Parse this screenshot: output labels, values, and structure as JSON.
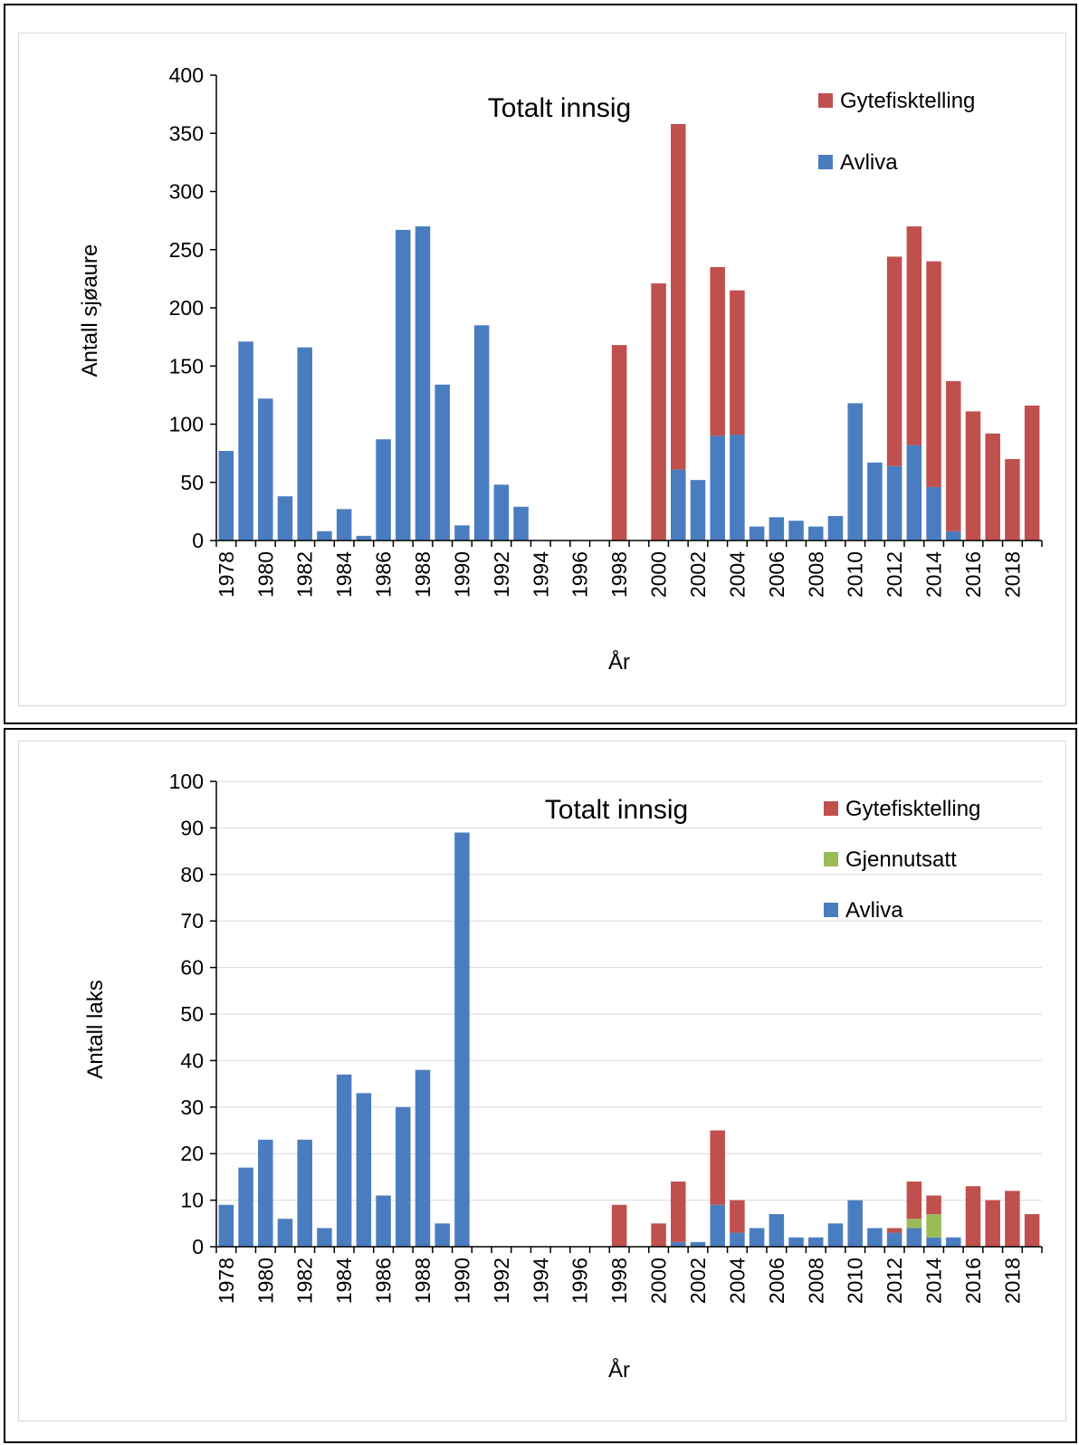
{
  "chart_data": [
    {
      "type": "bar",
      "stacked": true,
      "title": "Totalt innsig",
      "xlabel": "År",
      "ylabel": "Antall sjøaure",
      "ylim": [
        0,
        400
      ],
      "yticks": [
        "0",
        "50",
        "100",
        "150",
        "200",
        "250",
        "300",
        "350",
        "400"
      ],
      "grid": false,
      "legend_position": "top-right",
      "categories": [
        "1978",
        "1979",
        "1980",
        "1981",
        "1982",
        "1983",
        "1984",
        "1985",
        "1986",
        "1987",
        "1988",
        "1989",
        "1990",
        "1991",
        "1992",
        "1993",
        "1994",
        "1995",
        "1996",
        "1997",
        "1998",
        "1999",
        "2000",
        "2001",
        "2002",
        "2003",
        "2004",
        "2005",
        "2006",
        "2007",
        "2008",
        "2009",
        "2010",
        "2011",
        "2012",
        "2013",
        "2014",
        "2015",
        "2016",
        "2017",
        "2018",
        "2019"
      ],
      "xtick_labels": [
        "1978",
        "1980",
        "1982",
        "1984",
        "1986",
        "1988",
        "1990",
        "1992",
        "1994",
        "1996",
        "1998",
        "2000",
        "2002",
        "2004",
        "2006",
        "2008",
        "2010",
        "2012",
        "2014",
        "2016",
        "2018"
      ],
      "series": [
        {
          "name": "Avliva",
          "color": "#4a7dc0",
          "values": [
            77,
            171,
            122,
            38,
            166,
            8,
            27,
            4,
            87,
            267,
            270,
            134,
            13,
            185,
            48,
            29,
            0,
            0,
            0,
            0,
            0,
            0,
            0,
            61,
            52,
            90,
            91,
            12,
            20,
            17,
            12,
            21,
            118,
            67,
            64,
            82,
            46,
            8,
            0,
            0,
            0,
            0
          ]
        },
        {
          "name": "Gytefisktelling",
          "color": "#c0504d",
          "values": [
            0,
            0,
            0,
            0,
            0,
            0,
            0,
            0,
            0,
            0,
            0,
            0,
            0,
            0,
            0,
            0,
            0,
            0,
            0,
            0,
            168,
            0,
            221,
            297,
            0,
            145,
            124,
            0,
            0,
            0,
            0,
            0,
            0,
            0,
            180,
            188,
            194,
            129,
            111,
            92,
            70,
            116
          ]
        }
      ],
      "legend": [
        "Gytefisktelling",
        "Avliva"
      ]
    },
    {
      "type": "bar",
      "stacked": true,
      "title": "Totalt innsig",
      "xlabel": "År",
      "ylabel": "Antall laks",
      "ylim": [
        0,
        100
      ],
      "yticks": [
        "0",
        "10",
        "20",
        "30",
        "40",
        "50",
        "60",
        "70",
        "80",
        "90",
        "100"
      ],
      "grid": true,
      "legend_position": "top-right",
      "categories": [
        "1978",
        "1979",
        "1980",
        "1981",
        "1982",
        "1983",
        "1984",
        "1985",
        "1986",
        "1987",
        "1988",
        "1989",
        "1990",
        "1991",
        "1992",
        "1993",
        "1994",
        "1995",
        "1996",
        "1997",
        "1998",
        "1999",
        "2000",
        "2001",
        "2002",
        "2003",
        "2004",
        "2005",
        "2006",
        "2007",
        "2008",
        "2009",
        "2010",
        "2011",
        "2012",
        "2013",
        "2014",
        "2015",
        "2016",
        "2017",
        "2018",
        "2019"
      ],
      "xtick_labels": [
        "1978",
        "1980",
        "1982",
        "1984",
        "1986",
        "1988",
        "1990",
        "1992",
        "1994",
        "1996",
        "1998",
        "2000",
        "2002",
        "2004",
        "2006",
        "2008",
        "2010",
        "2012",
        "2014",
        "2016",
        "2018"
      ],
      "series": [
        {
          "name": "Avliva",
          "color": "#4a7dc0",
          "values": [
            9,
            17,
            23,
            6,
            23,
            4,
            37,
            33,
            11,
            30,
            38,
            5,
            89,
            0,
            0,
            0,
            0,
            0,
            0,
            0,
            0,
            0,
            0,
            1,
            1,
            9,
            3,
            4,
            7,
            2,
            2,
            5,
            10,
            4,
            3,
            4,
            2,
            2,
            0,
            0,
            0,
            0
          ]
        },
        {
          "name": "Gjennutsatt",
          "color": "#9bbb59",
          "values": [
            0,
            0,
            0,
            0,
            0,
            0,
            0,
            0,
            0,
            0,
            0,
            0,
            0,
            0,
            0,
            0,
            0,
            0,
            0,
            0,
            0,
            0,
            0,
            0,
            0,
            0,
            0,
            0,
            0,
            0,
            0,
            0,
            0,
            0,
            0,
            2,
            5,
            0,
            0,
            0,
            0,
            0
          ]
        },
        {
          "name": "Gytefisktelling",
          "color": "#c0504d",
          "values": [
            0,
            0,
            0,
            0,
            0,
            0,
            0,
            0,
            0,
            0,
            0,
            0,
            0,
            0,
            0,
            0,
            0,
            0,
            0,
            0,
            9,
            0,
            5,
            13,
            0,
            16,
            7,
            0,
            0,
            0,
            0,
            0,
            0,
            0,
            1,
            8,
            4,
            0,
            13,
            10,
            12,
            7
          ]
        }
      ],
      "legend": [
        "Gytefisktelling",
        "Gjennutsatt",
        "Avliva"
      ]
    }
  ]
}
